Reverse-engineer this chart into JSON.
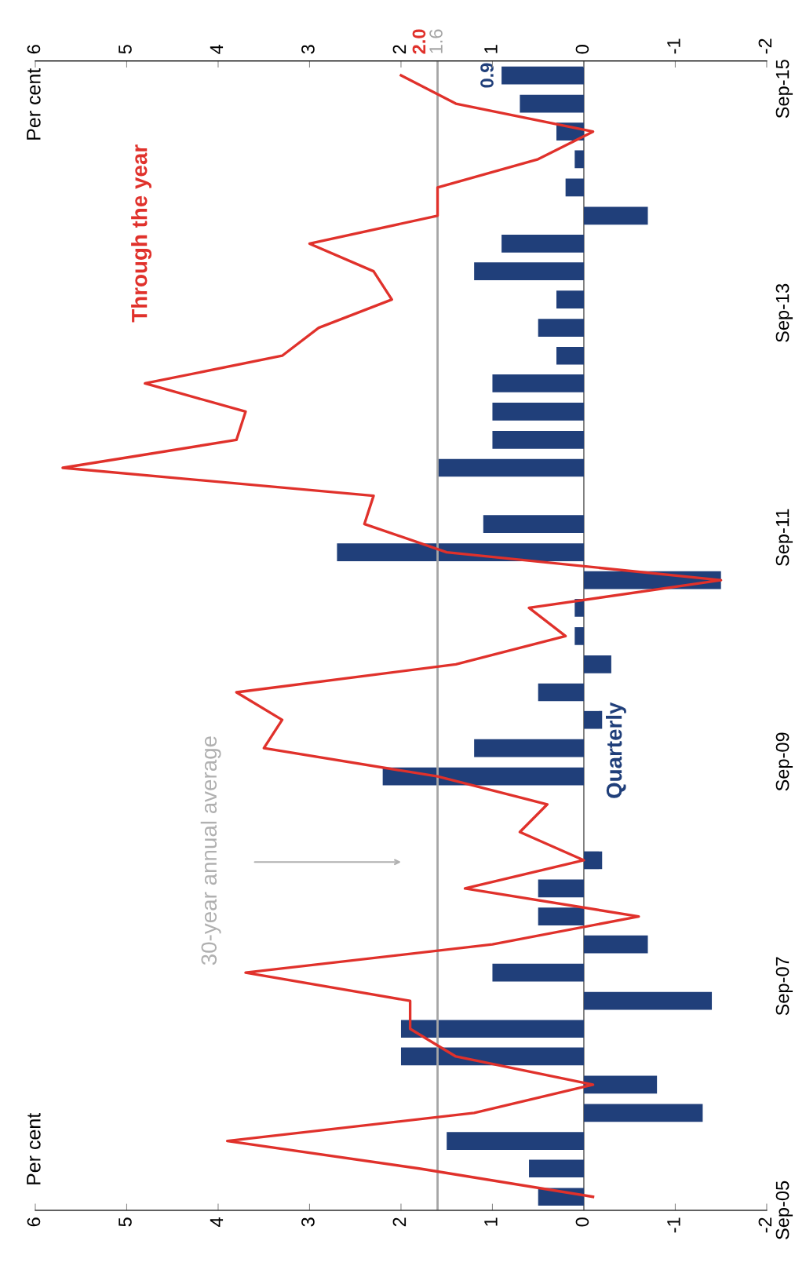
{
  "chart_data": {
    "type": "bar",
    "orientation": "horizontal",
    "x": [
      "2005-10-15",
      "2006-01-15",
      "2006-04-15",
      "2006-07-15",
      "2006-10-15",
      "2007-01-15",
      "2007-04-15",
      "2007-07-15",
      "2007-10-15",
      "2008-01-15",
      "2008-04-15",
      "2008-07-15",
      "2008-10-15",
      "2009-01-15",
      "2009-04-15",
      "2009-07-15",
      "2009-10-15",
      "2010-01-15",
      "2010-04-15",
      "2010-07-15",
      "2010-10-15",
      "2011-01-15",
      "2011-04-15",
      "2011-07-15",
      "2011-10-15",
      "2012-01-15",
      "2012-04-15",
      "2012-07-15",
      "2012-10-15",
      "2013-01-15",
      "2013-04-15",
      "2013-07-15",
      "2013-10-15",
      "2014-01-15",
      "2014-04-15",
      "2014-07-15",
      "2014-10-15",
      "2015-01-15",
      "2015-04-15",
      "2015-07-15",
      "2015-10-15"
    ],
    "series": [
      {
        "name": "Quarterly",
        "type": "bar",
        "color": "#203f7a",
        "values": [
          0.5,
          0.6,
          1.5,
          -1.3,
          -0.8,
          2.0,
          2.0,
          -1.4,
          1.0,
          -0.7,
          0.5,
          0.5,
          -0.2,
          0,
          0,
          2.2,
          1.2,
          -0.2,
          0.5,
          -0.3,
          0.1,
          0.1,
          -1.5,
          2.7,
          1.1,
          0,
          1.6,
          1.0,
          1.0,
          1.0,
          0.3,
          0.5,
          0.3,
          1.2,
          0.9,
          -0.7,
          0.2,
          0.1,
          0.3,
          0.7,
          0.9
        ],
        "value_labels": [
          null,
          null,
          null,
          null,
          null,
          null,
          null,
          null,
          null,
          null,
          null,
          null,
          null,
          null,
          null,
          null,
          null,
          null,
          null,
          null,
          null,
          null,
          null,
          null,
          null,
          null,
          null,
          null,
          null,
          null,
          null,
          null,
          null,
          null,
          null,
          null,
          null,
          null,
          null,
          null,
          "0.9"
        ]
      },
      {
        "name": "Through the year",
        "type": "line",
        "color": "#e0312b",
        "values": [
          -0.1,
          1.8,
          3.9,
          1.2,
          -0.1,
          1.4,
          1.9,
          1.9,
          3.7,
          1.0,
          -0.6,
          1.3,
          0.0,
          0.7,
          0.4,
          1.6,
          3.5,
          3.3,
          3.8,
          1.4,
          0.2,
          0.6,
          -1.5,
          1.5,
          2.4,
          2.3,
          5.7,
          3.8,
          3.7,
          4.8,
          3.3,
          2.9,
          2.1,
          2.3,
          3.0,
          1.6,
          1.6,
          0.5,
          -0.1,
          1.4,
          2.0
        ],
        "value_labels": [
          null,
          null,
          null,
          null,
          null,
          null,
          null,
          null,
          null,
          null,
          null,
          null,
          null,
          null,
          null,
          null,
          null,
          null,
          null,
          null,
          null,
          null,
          null,
          null,
          null,
          null,
          null,
          null,
          null,
          null,
          null,
          null,
          null,
          null,
          null,
          null,
          null,
          null,
          null,
          null,
          "2.0"
        ]
      }
    ],
    "xlim": [
      6,
      -2
    ],
    "xticks": [
      6,
      5,
      4,
      3,
      2,
      1,
      0,
      -1,
      -2
    ],
    "x2lim": [
      6,
      -2
    ],
    "x2ticks": [
      6,
      5,
      4,
      3,
      2,
      1,
      0,
      -1,
      -2
    ],
    "ylim": [
      "2005-09-01",
      "2015-12-01"
    ],
    "yticks": [
      {
        "value": "2005-09-01",
        "label": "Sep-05"
      },
      {
        "value": "2007-09-01",
        "label": "Sep-07"
      },
      {
        "value": "2009-09-01",
        "label": "Sep-09"
      },
      {
        "value": "2011-09-01",
        "label": "Sep-11"
      },
      {
        "value": "2013-09-01",
        "label": "Sep-13"
      },
      {
        "value": "2015-09-01",
        "label": "Sep-15"
      }
    ],
    "ref_lines": [
      {
        "axis": "x",
        "value": 1.6,
        "label": "1.6",
        "color": "#a6a6a6"
      },
      {
        "axis": "x",
        "value": 0,
        "color": "#555555"
      }
    ],
    "annotations": [
      "Per cent",
      "Per cent",
      "30-year annual average"
    ],
    "grid": false
  }
}
